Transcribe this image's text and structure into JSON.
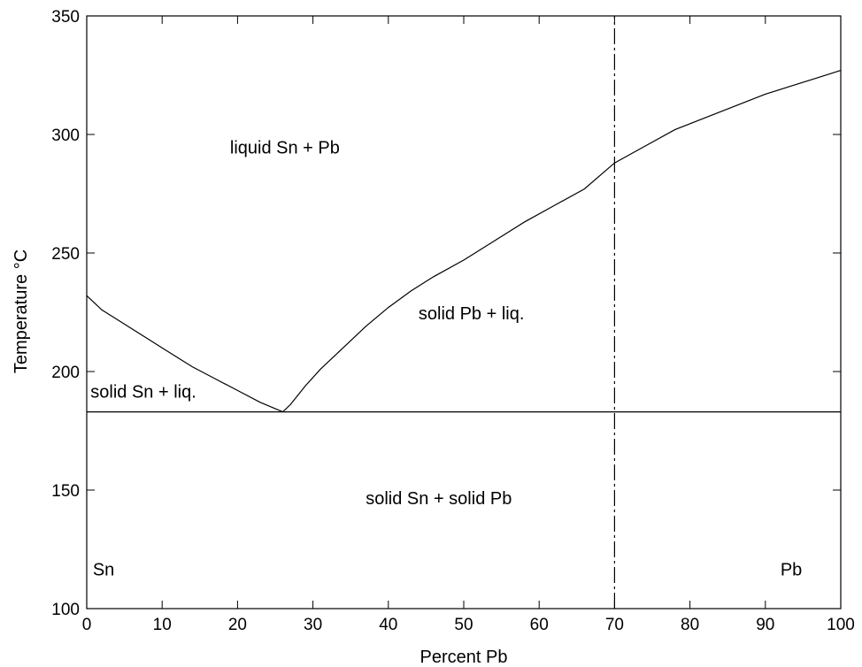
{
  "chart_data": {
    "type": "line",
    "title": "",
    "xlabel": "Percent Pb",
    "ylabel": "Temperature  °C",
    "xlim": [
      0,
      100
    ],
    "ylim": [
      100,
      350
    ],
    "xticks": [
      0,
      10,
      20,
      30,
      40,
      50,
      60,
      70,
      80,
      90,
      100
    ],
    "yticks": [
      100,
      150,
      200,
      250,
      300,
      350
    ],
    "grid": false,
    "series": [
      {
        "x": [
          0,
          2,
          5,
          8,
          11,
          14,
          17,
          20,
          23,
          26,
          27,
          29,
          31,
          34,
          37,
          40,
          43,
          46,
          50,
          54,
          58,
          62,
          66,
          70,
          74,
          78,
          82,
          86,
          90,
          94,
          97,
          100
        ],
        "y": [
          232,
          226,
          220,
          214,
          208,
          202,
          197,
          192,
          187,
          183,
          186,
          194,
          201,
          210,
          219,
          227,
          234,
          240,
          247,
          255,
          263,
          270,
          277,
          288,
          295,
          302,
          307,
          312,
          317,
          321,
          324,
          327
        ],
        "style": "solid"
      },
      {
        "x": [
          0,
          100
        ],
        "y": [
          183,
          183
        ],
        "style": "solid"
      },
      {
        "x": [
          70,
          70
        ],
        "y": [
          100,
          350
        ],
        "style": "dashed"
      }
    ],
    "annotations": [
      {
        "text": "liquid Sn + Pb",
        "x": 19,
        "y": 292
      },
      {
        "text": "solid Pb + liq.",
        "x": 44,
        "y": 222
      },
      {
        "text": "solid Sn + liq.",
        "x": 0.5,
        "y": 189
      },
      {
        "text": "solid Sn + solid Pb",
        "x": 37,
        "y": 144
      },
      {
        "text": "Sn",
        "x": 0.8,
        "y": 114
      },
      {
        "text": "Pb",
        "x": 92,
        "y": 114
      }
    ]
  }
}
